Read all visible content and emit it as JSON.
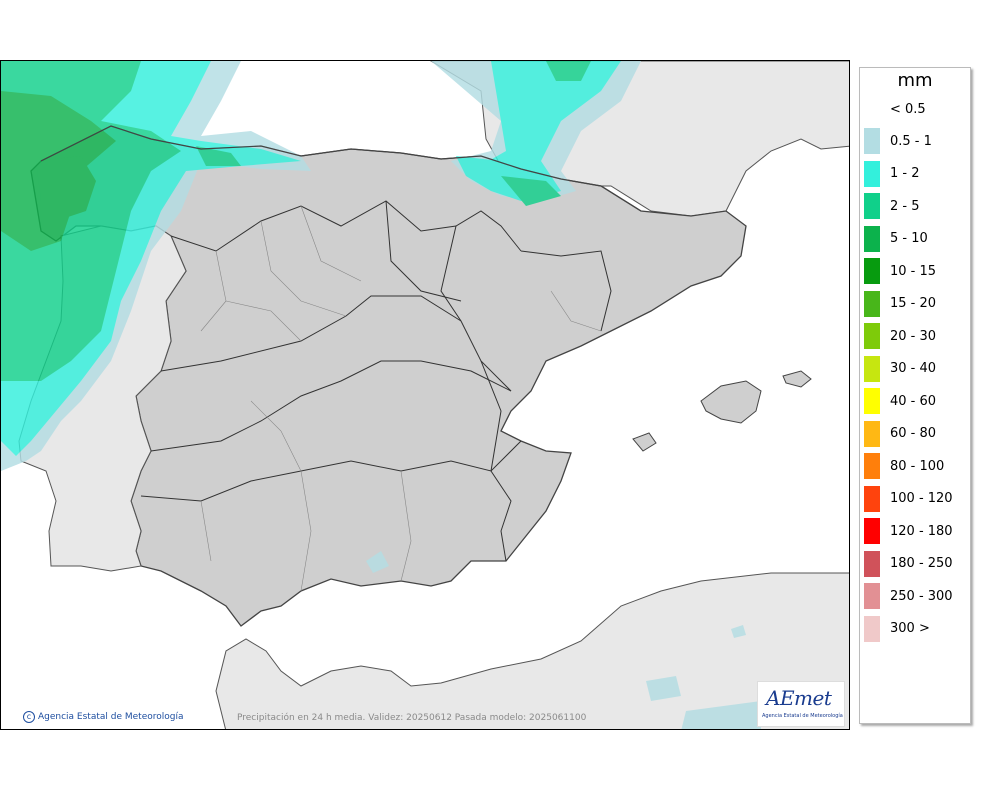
{
  "map": {
    "credit": "Agencia Estatal de Meteorología",
    "caption": "Precipitación en 24 h media. Validez: 20250612 Pasada modelo: 2025061100",
    "logo_text": "AEmet",
    "logo_subtitle": "Agencia Estatal de Meteorología"
  },
  "legend": {
    "unit": "mm",
    "below_threshold": "< 0.5",
    "items": [
      {
        "label": "0.5 - 1",
        "color": "#b3dde3"
      },
      {
        "label": "1 - 2",
        "color": "#33f0dc"
      },
      {
        "label": "2 - 5",
        "color": "#10d08a"
      },
      {
        "label": "5 - 10",
        "color": "#0cb24c"
      },
      {
        "label": "10 - 15",
        "color": "#079b0f"
      },
      {
        "label": "15 - 20",
        "color": "#48b61a"
      },
      {
        "label": "20 - 30",
        "color": "#7ecb0a"
      },
      {
        "label": "30 - 40",
        "color": "#c6e610"
      },
      {
        "label": "40 - 60",
        "color": "#ffff00"
      },
      {
        "label": "60 - 80",
        "color": "#ffb814"
      },
      {
        "label": "80 - 100",
        "color": "#ff7f0b"
      },
      {
        "label": "100 - 120",
        "color": "#ff430d"
      },
      {
        "label": "120 - 180",
        "color": "#ff0000"
      },
      {
        "label": "180 - 250",
        "color": "#d0525a"
      },
      {
        "label": "250 - 300",
        "color": "#e29094"
      },
      {
        "label": "300 >",
        "color": "#f0c9c9"
      }
    ]
  }
}
